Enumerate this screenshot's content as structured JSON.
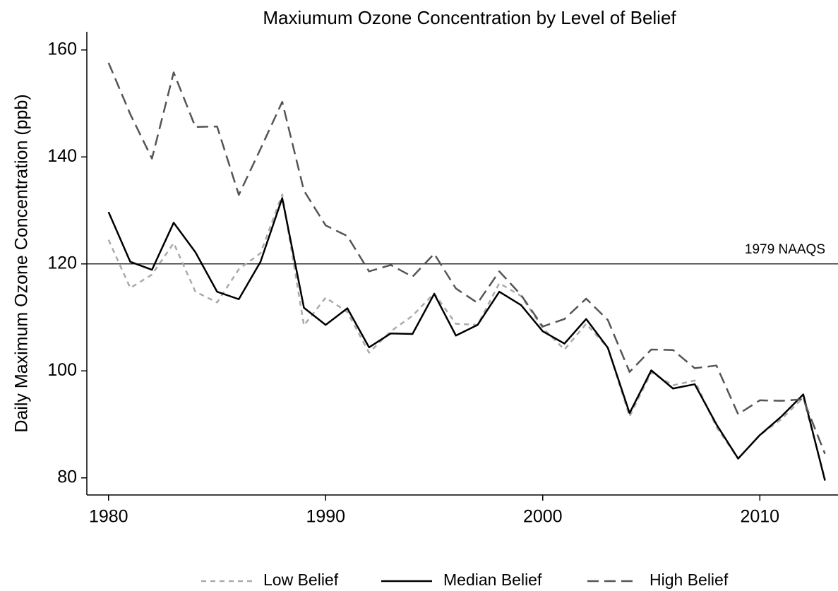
{
  "chart_data": {
    "type": "line",
    "title": "Maxiumum Ozone Concentration by Level of Belief",
    "y_label": "Daily Maximum Ozone Concentration (ppb)",
    "x": [
      1980,
      1981,
      1982,
      1983,
      1984,
      1985,
      1986,
      1987,
      1988,
      1989,
      1990,
      1991,
      1992,
      1993,
      1994,
      1995,
      1996,
      1997,
      1998,
      1999,
      2000,
      2001,
      2002,
      2003,
      2004,
      2005,
      2006,
      2007,
      2008,
      2009,
      2010,
      2011,
      2012,
      2013
    ],
    "series": [
      {
        "name": "Low Belief",
        "color": "#aaaaaa",
        "dash": "dotted",
        "values": [
          124.5,
          115.5,
          118.0,
          123.9,
          114.8,
          112.8,
          119.0,
          122.0,
          133.0,
          108.5,
          113.7,
          111.0,
          103.4,
          107.4,
          110.3,
          114.5,
          108.8,
          108.6,
          116.4,
          114.0,
          108.0,
          104.0,
          108.8,
          104.3,
          91.5,
          99.7,
          97.3,
          98.2,
          89.5,
          83.6,
          88.0,
          91.0,
          95.0,
          79.8
        ]
      },
      {
        "name": "Median Belief",
        "color": "#000000",
        "dash": "solid",
        "values": [
          129.7,
          120.4,
          118.9,
          127.7,
          122.2,
          114.8,
          113.4,
          120.4,
          132.3,
          111.8,
          108.6,
          111.7,
          104.4,
          107.0,
          106.9,
          114.4,
          106.6,
          108.6,
          114.8,
          112.3,
          107.4,
          105.1,
          109.7,
          104.3,
          92.1,
          100.1,
          96.7,
          97.5,
          90.0,
          83.6,
          88.0,
          91.5,
          95.6,
          79.5
        ]
      },
      {
        "name": "High Belief",
        "color": "#555555",
        "dash": "dashed",
        "values": [
          157.6,
          148.0,
          139.7,
          155.8,
          145.6,
          145.7,
          132.9,
          141.5,
          150.3,
          133.7,
          127.2,
          125.2,
          118.6,
          119.8,
          117.6,
          121.9,
          115.4,
          112.7,
          118.6,
          114.2,
          108.3,
          109.7,
          113.5,
          109.5,
          99.8,
          104.0,
          103.9,
          100.5,
          101.0,
          91.9,
          94.5,
          94.4,
          94.7,
          84.5
        ]
      }
    ],
    "reference_lines": [
      {
        "value": 120,
        "label": "1979 NAAQS"
      }
    ],
    "xlim": [
      1979,
      2013.6
    ],
    "ylim": [
      76.8,
      163.4
    ],
    "xticks": [
      1980,
      1990,
      2000,
      2010
    ],
    "yticks": [
      80,
      100,
      120,
      140,
      160
    ],
    "grid": false,
    "legend_position": "bottom"
  }
}
